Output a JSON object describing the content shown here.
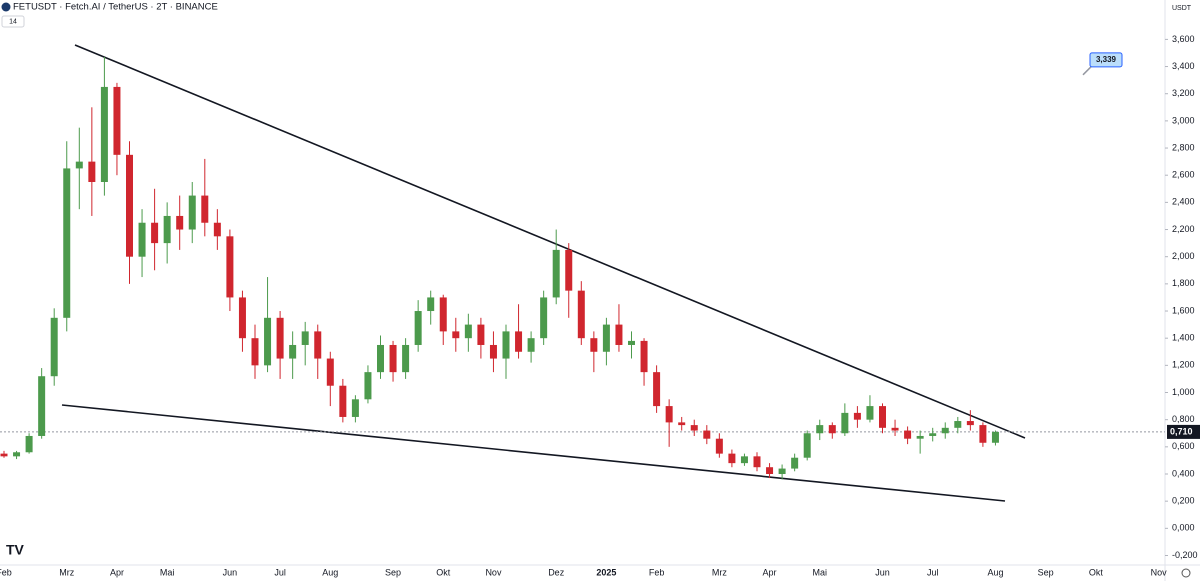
{
  "header": {
    "symbol": "FETUSDT · Fetch.AI / TetherUS · 2T · BINANCE",
    "badge": "14"
  },
  "chart_data": {
    "type": "candlestick",
    "currency": "USDT",
    "categories": [
      "Feb",
      null,
      null,
      null,
      null,
      "Mrz",
      null,
      null,
      null,
      "Apr",
      null,
      null,
      null,
      "Mai",
      null,
      null,
      null,
      null,
      "Jun",
      null,
      null,
      null,
      "Jul",
      null,
      null,
      null,
      "Aug",
      null,
      null,
      null,
      null,
      "Sep",
      null,
      null,
      null,
      "Okt",
      null,
      null,
      null,
      "Nov",
      null,
      null,
      null,
      null,
      "Dez",
      null,
      null,
      null,
      "2025",
      null,
      null,
      null,
      "Feb",
      null,
      null,
      null,
      null,
      "Mrz",
      null,
      null,
      null,
      "Apr",
      null,
      null,
      null,
      "Mai",
      null,
      null,
      null,
      null,
      "Jun",
      null,
      null,
      null,
      "Jul",
      null,
      null,
      null,
      null,
      "Aug",
      null,
      null,
      null,
      "Sep",
      null,
      null,
      null,
      "Okt",
      null,
      null,
      null,
      null,
      "Nov"
    ],
    "open": [
      0.55,
      0.53,
      0.56,
      0.68,
      1.12,
      1.55,
      2.65,
      2.7,
      2.55,
      3.25,
      2.75,
      2.0,
      2.25,
      2.1,
      2.3,
      2.2,
      2.45,
      2.25,
      2.15,
      1.7,
      1.4,
      1.2,
      1.55,
      1.25,
      1.35,
      1.45,
      1.25,
      1.05,
      0.82,
      0.95,
      1.15,
      1.35,
      1.15,
      1.35,
      1.6,
      1.7,
      1.45,
      1.4,
      1.5,
      1.35,
      1.25,
      1.45,
      1.3,
      1.4,
      1.7,
      2.05,
      1.75,
      1.4,
      1.3,
      1.5,
      1.35,
      1.38,
      1.15,
      0.9,
      0.78,
      0.76,
      0.72,
      0.66,
      0.55,
      0.48,
      0.53,
      0.45,
      0.4,
      0.44,
      0.52,
      0.7,
      0.76,
      0.7,
      0.85,
      0.8,
      0.9,
      0.74,
      0.72,
      0.66,
      0.68,
      0.7,
      0.74,
      0.79,
      0.76,
      0.63,
      null,
      null,
      null,
      null,
      null,
      null,
      null,
      null,
      null,
      null,
      null,
      null,
      null
    ],
    "high": [
      0.57,
      0.57,
      0.7,
      1.18,
      1.62,
      2.85,
      2.95,
      3.1,
      3.47,
      3.28,
      2.85,
      2.35,
      2.5,
      2.4,
      2.45,
      2.55,
      2.72,
      2.35,
      2.2,
      1.75,
      1.5,
      1.85,
      1.6,
      1.45,
      1.52,
      1.5,
      1.3,
      1.1,
      0.98,
      1.2,
      1.42,
      1.38,
      1.4,
      1.68,
      1.75,
      1.72,
      1.55,
      1.58,
      1.55,
      1.45,
      1.5,
      1.65,
      1.45,
      1.75,
      2.2,
      2.1,
      1.82,
      1.45,
      1.55,
      1.65,
      1.45,
      1.4,
      1.2,
      0.95,
      0.82,
      0.8,
      0.76,
      0.7,
      0.58,
      0.55,
      0.56,
      0.48,
      0.47,
      0.55,
      0.72,
      0.8,
      0.78,
      0.92,
      0.9,
      0.98,
      0.92,
      0.8,
      0.75,
      0.72,
      0.74,
      0.78,
      0.82,
      0.87,
      0.78,
      0.72,
      null,
      null,
      null,
      null,
      null,
      null,
      null,
      null,
      null,
      null,
      null,
      null,
      null
    ],
    "low": [
      0.52,
      0.51,
      0.55,
      0.66,
      1.05,
      1.45,
      2.35,
      2.3,
      2.45,
      2.6,
      1.8,
      1.85,
      1.9,
      1.95,
      2.05,
      2.1,
      2.15,
      2.05,
      1.6,
      1.3,
      1.1,
      1.15,
      1.1,
      1.1,
      1.2,
      1.1,
      0.9,
      0.78,
      0.78,
      0.92,
      1.1,
      1.08,
      1.1,
      1.3,
      1.5,
      1.35,
      1.3,
      1.3,
      1.25,
      1.15,
      1.1,
      1.25,
      1.22,
      1.35,
      1.65,
      1.55,
      1.35,
      1.15,
      1.2,
      1.3,
      1.25,
      1.05,
      0.85,
      0.6,
      0.72,
      0.68,
      0.62,
      0.52,
      0.45,
      0.46,
      0.42,
      0.37,
      0.36,
      0.42,
      0.5,
      0.65,
      0.66,
      0.68,
      0.74,
      0.78,
      0.7,
      0.68,
      0.62,
      0.55,
      0.64,
      0.66,
      0.7,
      0.72,
      0.6,
      0.61,
      null,
      null,
      null,
      null,
      null,
      null,
      null,
      null,
      null,
      null,
      null,
      null,
      null
    ],
    "close": [
      0.53,
      0.56,
      0.68,
      1.12,
      1.55,
      2.65,
      2.7,
      2.55,
      3.25,
      2.75,
      2.0,
      2.25,
      2.1,
      2.3,
      2.2,
      2.45,
      2.25,
      2.15,
      1.7,
      1.4,
      1.2,
      1.55,
      1.25,
      1.35,
      1.45,
      1.25,
      1.05,
      0.82,
      0.95,
      1.15,
      1.35,
      1.15,
      1.35,
      1.6,
      1.7,
      1.45,
      1.4,
      1.5,
      1.35,
      1.25,
      1.45,
      1.3,
      1.4,
      1.7,
      2.05,
      1.75,
      1.4,
      1.3,
      1.5,
      1.35,
      1.38,
      1.15,
      0.9,
      0.78,
      0.76,
      0.72,
      0.66,
      0.55,
      0.48,
      0.53,
      0.45,
      0.4,
      0.44,
      0.52,
      0.7,
      0.76,
      0.7,
      0.85,
      0.8,
      0.9,
      0.74,
      0.72,
      0.66,
      0.68,
      0.7,
      0.74,
      0.79,
      0.76,
      0.63,
      0.71,
      null,
      null,
      null,
      null,
      null,
      null,
      null,
      null,
      null,
      null,
      null,
      null,
      null
    ],
    "up_color": "#4c9a4c",
    "down_color": "#d0262e",
    "ylim": [
      -0.27,
      3.89
    ],
    "yticks": [
      {
        "value": -0.2,
        "label": "-0,200"
      },
      {
        "value": 0,
        "label": "0,000"
      },
      {
        "value": 0.2,
        "label": "0,200"
      },
      {
        "value": 0.4,
        "label": "0,400"
      },
      {
        "value": 0.6,
        "label": "0,600"
      },
      {
        "value": 0.8,
        "label": "0,800"
      },
      {
        "value": 1.0,
        "label": "1,000"
      },
      {
        "value": 1.2,
        "label": "1,200"
      },
      {
        "value": 1.4,
        "label": "1,400"
      },
      {
        "value": 1.6,
        "label": "1,600"
      },
      {
        "value": 1.8,
        "label": "1,800"
      },
      {
        "value": 2.0,
        "label": "2,000"
      },
      {
        "value": 2.2,
        "label": "2,200"
      },
      {
        "value": 2.4,
        "label": "2,400"
      },
      {
        "value": 2.6,
        "label": "2,600"
      },
      {
        "value": 2.8,
        "label": "2,800"
      },
      {
        "value": 3.0,
        "label": "3,000"
      },
      {
        "value": 3.2,
        "label": "3,200"
      },
      {
        "value": 3.4,
        "label": "3,400"
      },
      {
        "value": 3.6,
        "label": "3,600"
      }
    ],
    "last_price": {
      "value": 0.71,
      "label": "0,710"
    },
    "price_note": {
      "value": 3.339,
      "label": "3,339"
    }
  }
}
